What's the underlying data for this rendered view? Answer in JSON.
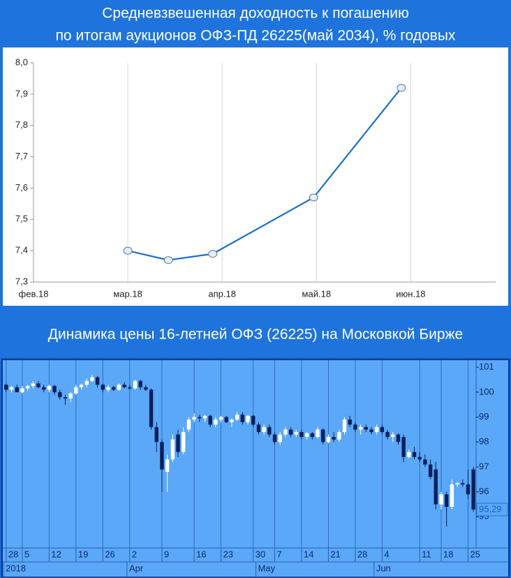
{
  "chart_data": [
    {
      "type": "line",
      "title_lines": [
        "Средневзвешенная доходность к погашению",
        "по итогам аукционов ОФЗ-ПД 26225(май 2034), % годовых"
      ],
      "x": [
        3.0,
        3.43,
        3.9,
        4.97,
        5.9
      ],
      "values": [
        7.4,
        7.37,
        7.39,
        7.57,
        7.92
      ],
      "color": "#1f6fc5",
      "xlim": [
        2,
        6.9
      ],
      "xticks": [
        {
          "value": 2,
          "label": "фев.18"
        },
        {
          "value": 3,
          "label": "мар.18"
        },
        {
          "value": 4,
          "label": "апр.18"
        },
        {
          "value": 5,
          "label": "май.18"
        },
        {
          "value": 6,
          "label": "июн.18"
        }
      ],
      "ylim": [
        7.3,
        8.0
      ],
      "yticks": [
        {
          "value": 7.3,
          "label": "7,3"
        },
        {
          "value": 7.4,
          "label": "7,4"
        },
        {
          "value": 7.5,
          "label": "7,5"
        },
        {
          "value": 7.6,
          "label": "7,6"
        },
        {
          "value": 7.7,
          "label": "7,7"
        },
        {
          "value": 7.8,
          "label": "7,8"
        },
        {
          "value": 7.9,
          "label": "7,9"
        },
        {
          "value": 8.0,
          "label": "8,0"
        }
      ],
      "grid": "x"
    },
    {
      "type": "candlestick",
      "title": "Динамика цены 16-летней ОФЗ (26225) на Московкой Бирже",
      "categories": [
        "28",
        null,
        null,
        "5",
        null,
        null,
        null,
        null,
        "12",
        null,
        null,
        null,
        null,
        "19",
        null,
        null,
        null,
        null,
        "26",
        null,
        null,
        null,
        null,
        "2",
        null,
        null,
        null,
        null,
        null,
        "9",
        null,
        null,
        null,
        null,
        null,
        "16",
        null,
        null,
        null,
        null,
        "23",
        null,
        null,
        null,
        null,
        null,
        "30",
        null,
        null,
        null,
        "7",
        null,
        null,
        null,
        null,
        "14",
        null,
        null,
        null,
        null,
        "21",
        null,
        null,
        null,
        null,
        "28",
        null,
        null,
        null,
        null,
        "4",
        null,
        null,
        null,
        null,
        null,
        null,
        "11",
        null,
        null,
        null,
        "18",
        null,
        null,
        null,
        null,
        "25",
        null
      ],
      "category_groups": [
        "2018",
        null,
        null,
        null,
        null,
        null,
        null,
        null,
        null,
        null,
        null,
        null,
        null,
        null,
        null,
        null,
        null,
        null,
        null,
        null,
        null,
        null,
        null,
        "Apr",
        null,
        null,
        null,
        null,
        null,
        null,
        null,
        null,
        null,
        null,
        null,
        null,
        null,
        null,
        null,
        null,
        null,
        null,
        null,
        null,
        null,
        null,
        null,
        "May",
        null,
        null,
        null,
        null,
        null,
        null,
        null,
        null,
        null,
        null,
        null,
        null,
        null,
        null,
        null,
        null,
        null,
        null,
        null,
        null,
        null,
        "Jun",
        null,
        null,
        null,
        null,
        null,
        null,
        null,
        null,
        null,
        null,
        null,
        null,
        null,
        null,
        null,
        null,
        null,
        null
      ],
      "open": [
        100.3,
        100.1,
        100.2,
        100.0,
        100.15,
        100.25,
        100.35,
        100.2,
        100.1,
        100.25,
        100.0,
        99.8,
        99.75,
        99.95,
        100.2,
        100.3,
        100.45,
        100.6,
        100.3,
        100.1,
        100.2,
        100.1,
        100.3,
        100.2,
        100.15,
        100.45,
        100.2,
        100.1,
        98.6,
        98.0,
        96.8,
        97.3,
        98.3,
        97.6,
        98.5,
        98.9,
        99.0,
        98.95,
        99.05,
        98.7,
        98.9,
        99.0,
        98.8,
        98.9,
        99.1,
        98.8,
        99.05,
        98.7,
        98.4,
        98.6,
        98.3,
        98.0,
        98.3,
        98.5,
        98.3,
        98.4,
        98.2,
        98.35,
        98.2,
        98.5,
        98.0,
        98.2,
        98.1,
        98.4,
        98.9,
        98.7,
        98.5,
        98.6,
        98.5,
        98.4,
        98.6,
        98.4,
        98.2,
        98.3,
        98.2,
        97.4,
        97.6,
        97.4,
        97.3,
        97.1,
        96.9,
        95.5,
        95.9,
        95.4,
        96.3,
        96.35,
        96.3,
        96.9
      ],
      "high": [
        100.35,
        100.25,
        100.3,
        100.25,
        100.3,
        100.45,
        100.45,
        100.3,
        100.3,
        100.3,
        100.1,
        99.9,
        100.0,
        100.3,
        100.35,
        100.55,
        100.7,
        100.65,
        100.35,
        100.3,
        100.25,
        100.35,
        100.4,
        100.3,
        100.5,
        100.5,
        100.3,
        100.15,
        98.8,
        98.1,
        97.5,
        98.3,
        98.5,
        98.6,
        99.0,
        99.15,
        99.1,
        99.1,
        99.1,
        99.0,
        99.05,
        99.05,
        98.95,
        99.2,
        99.2,
        99.1,
        99.1,
        98.8,
        98.7,
        98.7,
        98.4,
        98.4,
        98.6,
        98.6,
        98.5,
        98.5,
        98.4,
        98.4,
        98.6,
        98.55,
        98.3,
        98.4,
        98.5,
        99.0,
        99.05,
        98.8,
        98.7,
        98.7,
        98.6,
        98.7,
        98.7,
        98.5,
        98.4,
        98.35,
        98.3,
        97.7,
        97.8,
        97.6,
        97.5,
        97.3,
        97.2,
        96.0,
        96.0,
        96.5,
        96.4,
        96.5,
        96.9,
        97.0
      ],
      "low": [
        100.0,
        100.0,
        100.0,
        99.95,
        100.05,
        100.15,
        100.15,
        100.0,
        100.0,
        99.9,
        99.7,
        99.5,
        99.6,
        99.9,
        100.1,
        100.2,
        100.4,
        100.2,
        100.0,
        100.0,
        100.05,
        100.05,
        100.15,
        100.1,
        100.1,
        100.1,
        100.05,
        98.5,
        97.6,
        96.0,
        96.0,
        97.2,
        97.4,
        97.5,
        98.4,
        98.8,
        98.8,
        98.8,
        98.6,
        98.6,
        98.8,
        98.75,
        98.6,
        98.85,
        98.7,
        98.7,
        98.6,
        98.3,
        98.3,
        98.2,
        97.9,
        97.9,
        98.2,
        98.2,
        98.2,
        98.1,
        98.1,
        98.1,
        98.15,
        97.9,
        97.95,
        98.0,
        98.0,
        98.3,
        98.6,
        98.4,
        98.3,
        98.4,
        98.3,
        98.3,
        98.3,
        98.1,
        98.0,
        97.9,
        97.2,
        97.35,
        97.3,
        97.2,
        97.0,
        96.5,
        95.3,
        95.3,
        94.6,
        95.3,
        96.2,
        96.2,
        95.7,
        95.2
      ],
      "close": [
        100.1,
        100.2,
        100.0,
        100.15,
        100.25,
        100.35,
        100.2,
        100.1,
        100.25,
        100.0,
        99.8,
        99.75,
        99.95,
        100.2,
        100.3,
        100.45,
        100.6,
        100.3,
        100.1,
        100.2,
        100.1,
        100.3,
        100.2,
        100.15,
        100.45,
        100.2,
        100.1,
        98.6,
        98.0,
        96.9,
        97.3,
        98.1,
        97.6,
        98.4,
        98.9,
        99.0,
        98.95,
        99.05,
        98.7,
        98.9,
        99.0,
        98.8,
        98.9,
        99.1,
        98.8,
        99.05,
        98.7,
        98.4,
        98.6,
        98.3,
        98.0,
        98.3,
        98.5,
        98.3,
        98.4,
        98.2,
        98.35,
        98.2,
        98.5,
        98.0,
        98.2,
        98.1,
        98.4,
        98.9,
        98.7,
        98.5,
        98.6,
        98.5,
        98.4,
        98.6,
        98.4,
        98.2,
        98.3,
        98.0,
        97.4,
        97.6,
        97.4,
        97.3,
        97.1,
        96.6,
        95.5,
        95.9,
        95.4,
        96.3,
        96.35,
        96.3,
        95.9,
        95.29
      ],
      "up_color": "#ffffff",
      "down_color": "#0a1f5c",
      "background": "#5aa8f7",
      "ylim": [
        94,
        101.2
      ],
      "yticks": [
        95,
        96,
        97,
        98,
        99,
        100,
        101
      ],
      "last_price": {
        "value": 95.29,
        "label": "95,29"
      },
      "grid": "x"
    }
  ]
}
